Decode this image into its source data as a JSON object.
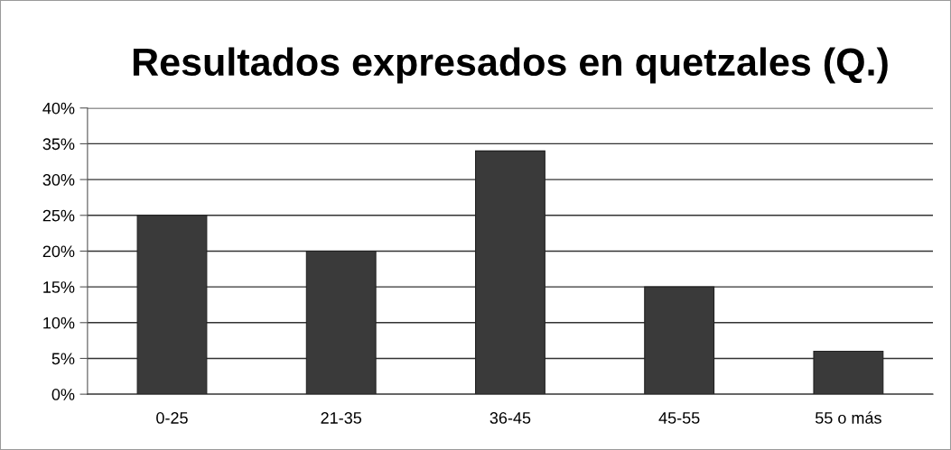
{
  "chart_data": {
    "type": "bar",
    "title": "Resultados expresados en quetzales (Q.)",
    "categories": [
      "0-25",
      "21-35",
      "36-45",
      "45-55",
      "55 o más"
    ],
    "values": [
      25,
      20,
      34,
      15,
      6
    ],
    "color": "#3a3a3a",
    "ylim": [
      0,
      40
    ],
    "yticks": [
      {
        "value": 0,
        "label": "0%"
      },
      {
        "value": 5,
        "label": "5%"
      },
      {
        "value": 10,
        "label": "10%"
      },
      {
        "value": 15,
        "label": "15%"
      },
      {
        "value": 20,
        "label": "20%"
      },
      {
        "value": 25,
        "label": "25%"
      },
      {
        "value": 30,
        "label": "30%"
      },
      {
        "value": 35,
        "label": "35%"
      },
      {
        "value": 40,
        "label": "40%"
      }
    ],
    "grid": "y",
    "legend": false
  }
}
